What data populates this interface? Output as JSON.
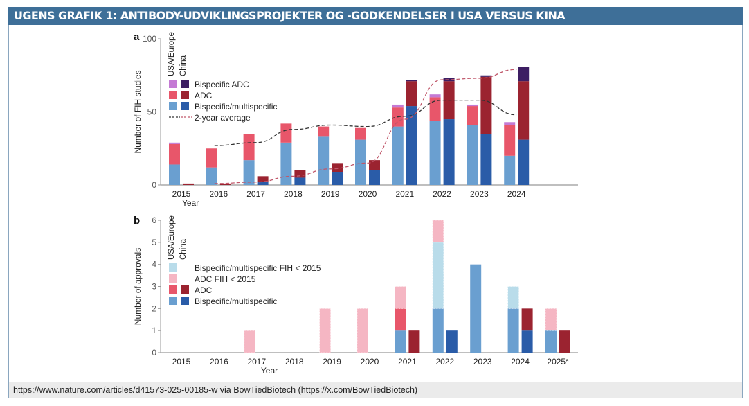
{
  "header": {
    "title": "UGENS GRAFIK 1: ANTIBODY-UDVIKLINGSPROJEKTER OG -GODKENDELSER I USA VERSUS KINA"
  },
  "footer": {
    "source": "https://www.nature.com/articles/d41573-025-00185-w via BowTiedBiotech (https://x.com/BowTiedBiotech)"
  },
  "colors": {
    "usa_bispecific": "#6a9fd0",
    "china_bispecific": "#2a5ca8",
    "usa_adc": "#e8566a",
    "china_adc": "#9b2330",
    "usa_bispecific_adc": "#c47ad4",
    "china_bispecific_adc": "#3d1e63",
    "bispecific_fih_pre2015": "#b9dcea",
    "adc_fih_pre2015": "#f5b6c3",
    "avg_usa": "#333333",
    "avg_china": "#c0576a"
  },
  "chart_data": [
    {
      "type": "bar",
      "panel_label": "a",
      "stacked": true,
      "grouped_by": [
        "USA/Europe",
        "China"
      ],
      "xlabel": "Year",
      "ylabel": "Number of FIH studies",
      "ylim": [
        0,
        100
      ],
      "yticks": [
        0,
        50,
        100
      ],
      "categories": [
        "2015",
        "2016",
        "2017",
        "2018",
        "2019",
        "2020",
        "2021",
        "2022",
        "2023",
        "2024"
      ],
      "legend": {
        "group_labels": [
          "USA/Europe",
          "China"
        ],
        "entries": [
          "Bispecific ADC",
          "ADC",
          "Bispecific/multispecific",
          "2-year average"
        ],
        "placement": "top-left"
      },
      "series": [
        {
          "name": "Bispecific/multispecific",
          "group": "USA/Europe",
          "values": [
            14,
            12,
            17,
            29,
            33,
            31,
            40,
            44,
            41,
            20
          ]
        },
        {
          "name": "ADC",
          "group": "USA/Europe",
          "values": [
            14,
            13,
            18,
            13,
            7,
            8,
            13,
            16,
            13,
            21
          ]
        },
        {
          "name": "Bispecific ADC",
          "group": "USA/Europe",
          "values": [
            1,
            0,
            0,
            0,
            0,
            0,
            2,
            2,
            1,
            2
          ]
        },
        {
          "name": "Bispecific/multispecific",
          "group": "China",
          "values": [
            0,
            0,
            2,
            5,
            9,
            10,
            54,
            45,
            35,
            31
          ]
        },
        {
          "name": "ADC",
          "group": "China",
          "values": [
            1,
            1,
            4,
            5,
            6,
            7,
            17,
            26,
            39,
            40
          ]
        },
        {
          "name": "Bispecific ADC",
          "group": "China",
          "values": [
            0,
            0,
            0,
            0,
            0,
            0,
            1,
            2,
            1,
            10
          ]
        }
      ],
      "averages": [
        {
          "name": "2-year average",
          "group": "USA/Europe",
          "x": [
            2016,
            2017,
            2018,
            2019,
            2020,
            2021,
            2022,
            2023,
            2024
          ],
          "values": [
            27,
            29,
            38,
            41,
            40,
            47,
            58,
            58,
            48
          ]
        },
        {
          "name": "2-year average",
          "group": "China",
          "x": [
            2016,
            2017,
            2018,
            2019,
            2020,
            2021,
            2022,
            2023,
            2024
          ],
          "values": [
            1,
            2,
            6,
            11,
            15,
            45,
            72,
            73,
            79
          ]
        }
      ]
    },
    {
      "type": "bar",
      "panel_label": "b",
      "stacked": true,
      "grouped_by": [
        "USA/Europe",
        "China"
      ],
      "xlabel": "Year",
      "ylabel": "Number of approvals",
      "ylim": [
        0,
        6
      ],
      "yticks": [
        0,
        1,
        2,
        3,
        4,
        5,
        6
      ],
      "categories": [
        "2015",
        "2016",
        "2017",
        "2018",
        "2019",
        "2020",
        "2021",
        "2022",
        "2023",
        "2024",
        "2025ᵃ"
      ],
      "legend": {
        "group_labels": [
          "USA/Europe",
          "China"
        ],
        "entries": [
          "Bispecific/multispecific FIH < 2015",
          "ADC FIH < 2015",
          "ADC",
          "Bispecific/multispecific"
        ],
        "placement": "top-left"
      },
      "series": [
        {
          "name": "Bispecific/multispecific",
          "group": "USA/Europe",
          "values": [
            0,
            0,
            0,
            0,
            0,
            0,
            1,
            2,
            4,
            2,
            1
          ]
        },
        {
          "name": "ADC",
          "group": "USA/Europe",
          "values": [
            0,
            0,
            0,
            0,
            0,
            0,
            1,
            0,
            0,
            0,
            0
          ]
        },
        {
          "name": "Bispecific/multispecific FIH < 2015",
          "group": "USA/Europe",
          "values": [
            0,
            0,
            0,
            0,
            0,
            0,
            0,
            3,
            0,
            1,
            0
          ]
        },
        {
          "name": "ADC FIH < 2015",
          "group": "USA/Europe",
          "values": [
            0,
            0,
            1,
            0,
            2,
            2,
            1,
            1,
            0,
            0,
            1
          ]
        },
        {
          "name": "Bispecific/multispecific",
          "group": "China",
          "values": [
            0,
            0,
            0,
            0,
            0,
            0,
            0,
            1,
            0,
            1,
            0
          ]
        },
        {
          "name": "ADC",
          "group": "China",
          "values": [
            0,
            0,
            0,
            0,
            0,
            0,
            1,
            0,
            0,
            1,
            1
          ]
        }
      ]
    }
  ]
}
